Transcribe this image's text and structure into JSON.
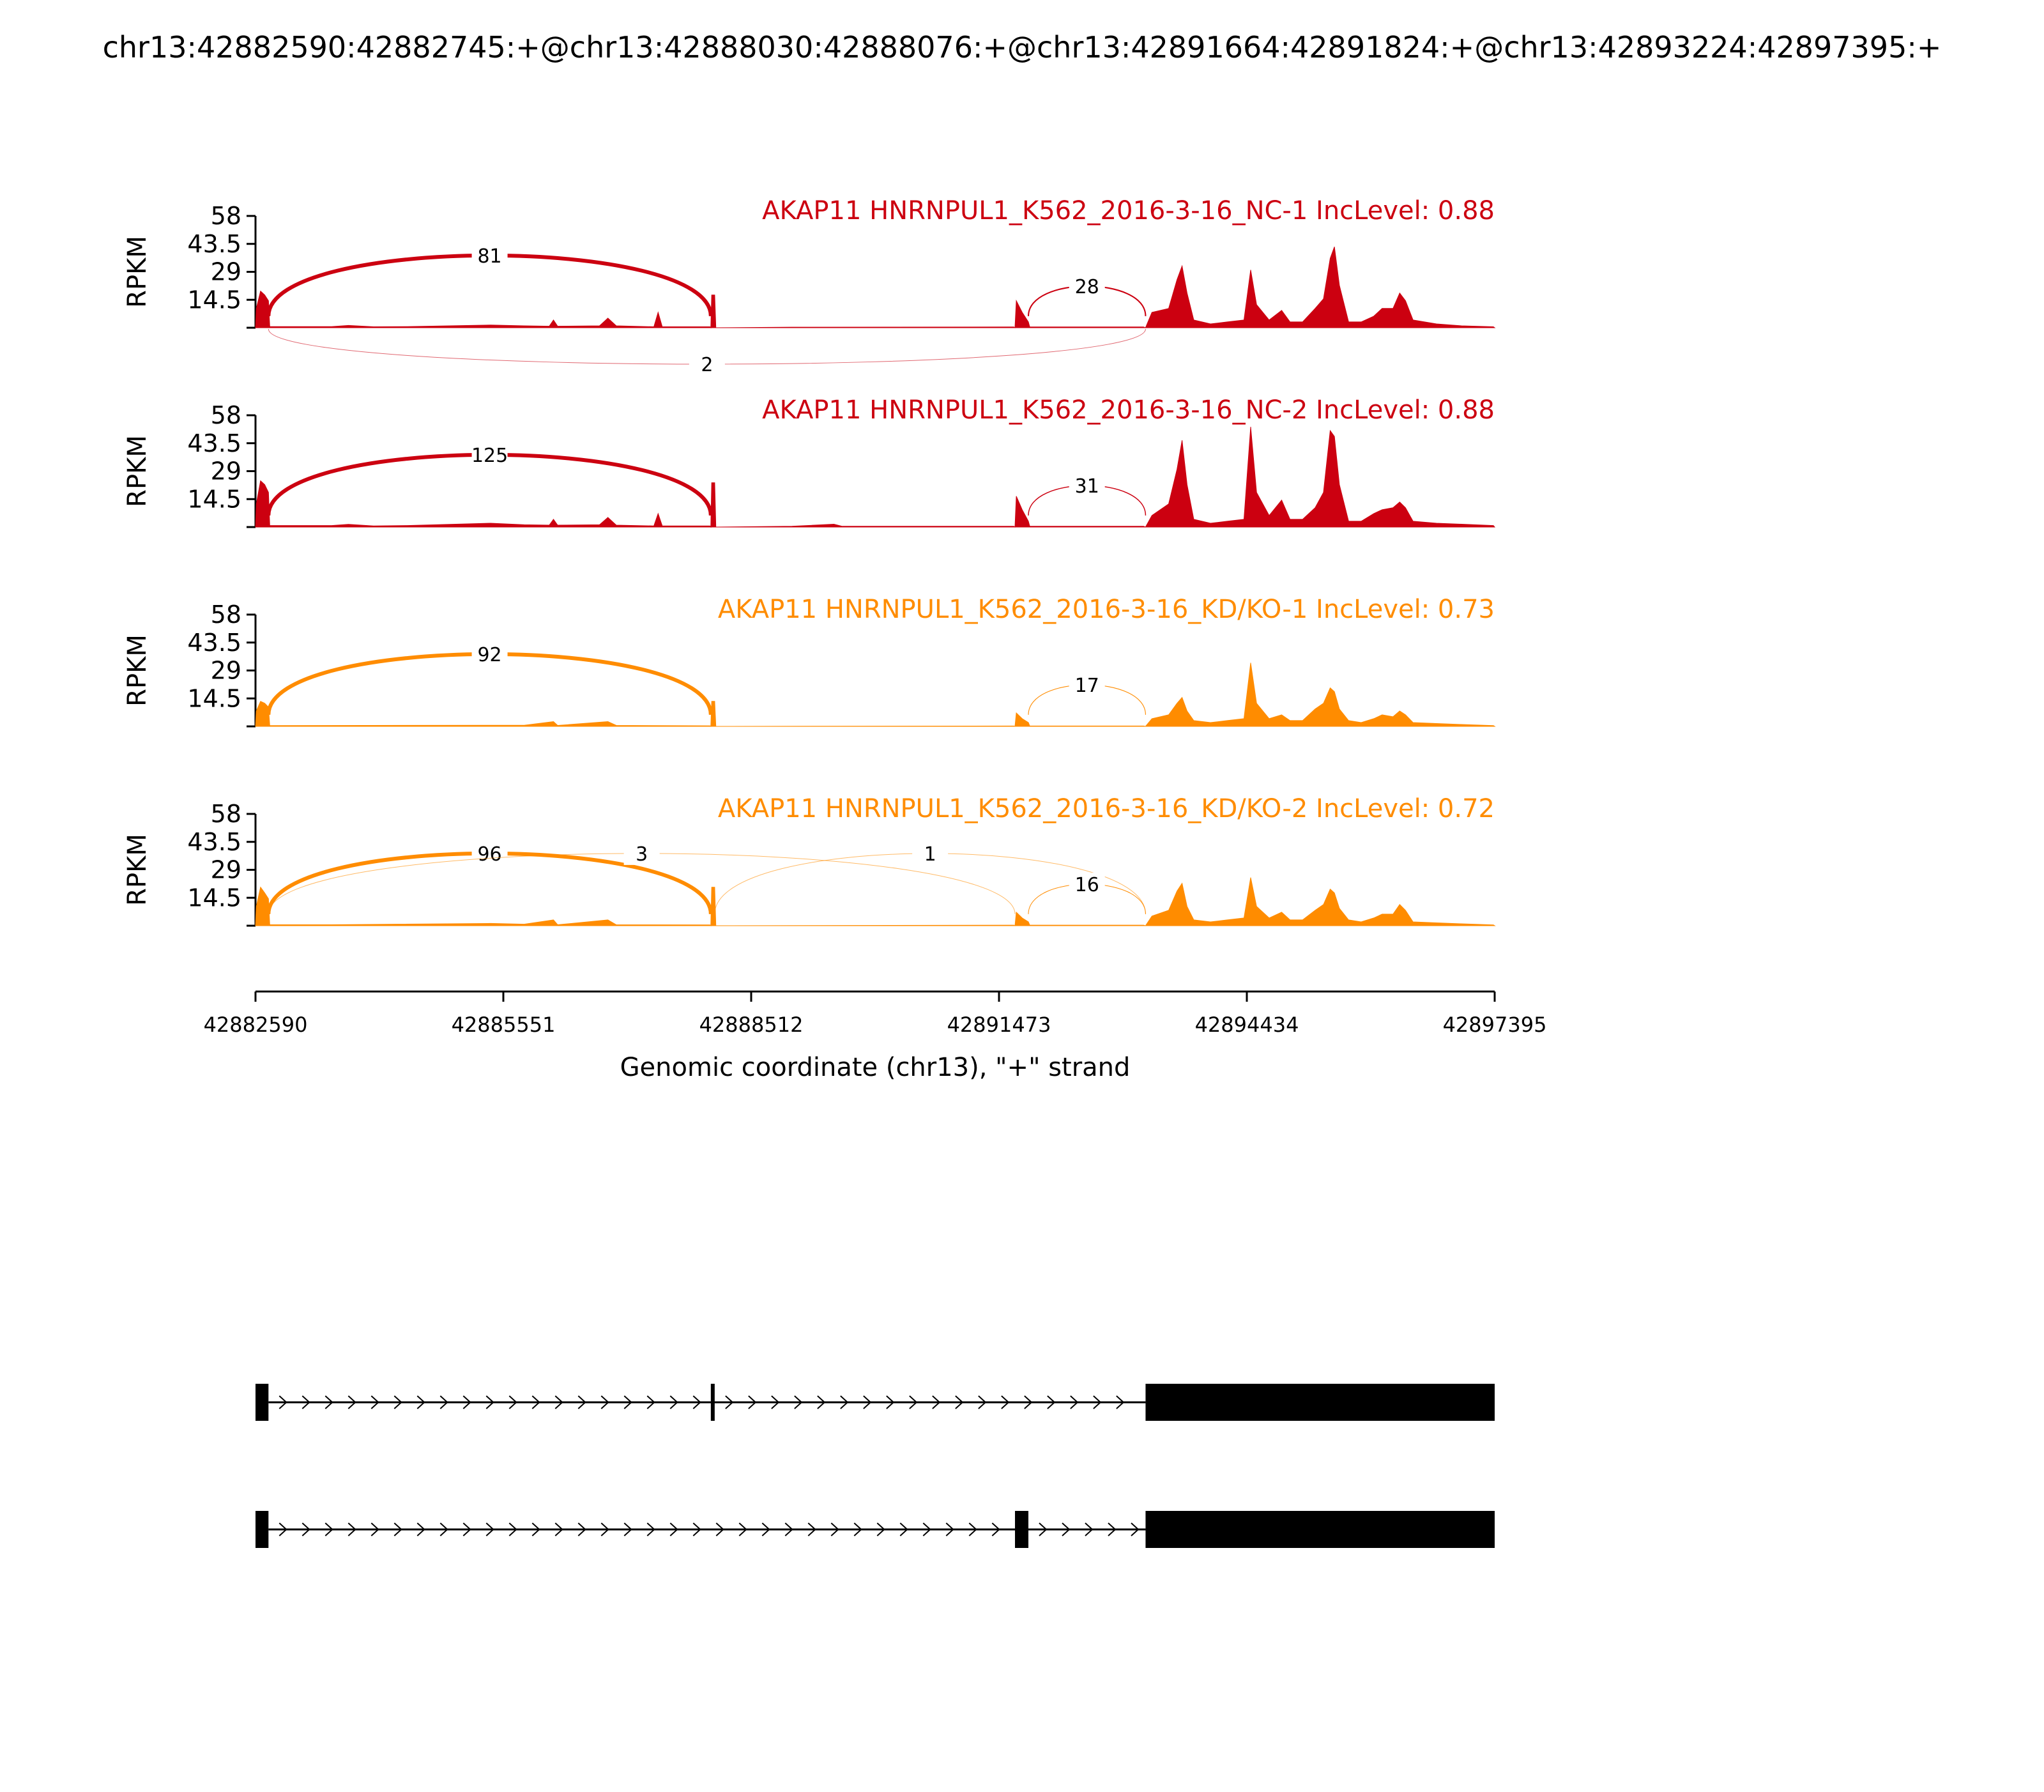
{
  "title": "chr13:42882590:42882745:+@chr13:42888030:42888076:+@chr13:42891664:42891824:+@chr13:42893224:42897395:+",
  "colors": {
    "control": "#cc0010",
    "knockdown": "#ff8c00",
    "axis": "#000000",
    "gene_model": "#000000"
  },
  "chart_data": {
    "type": "area",
    "subtype": "sashimi",
    "x_axis": {
      "label": "Genomic coordinate (chr13), \"+\" strand",
      "range": [
        42882590,
        42897395
      ],
      "ticks": [
        42882590,
        42885551,
        42888512,
        42891473,
        42894434,
        42897395
      ],
      "tick_labels": [
        "42882590",
        "42885551",
        "42888512",
        "42891473",
        "42894434",
        "42897395"
      ]
    },
    "y_axis": {
      "label": "RPKM",
      "range": [
        0,
        58
      ],
      "ticks": [
        14.5,
        29,
        43.5,
        58
      ],
      "tick_labels": [
        "14.5",
        "29",
        "43.5",
        "58"
      ]
    },
    "grid": false,
    "tracks": [
      {
        "label": "AKAP11 HNRNPUL1_K562_2016-3-16_NC-1 IncLevel: 0.88",
        "group": "control",
        "coverage": [
          [
            42882590,
            0
          ],
          [
            42882600,
            10
          ],
          [
            42882650,
            19
          ],
          [
            42882700,
            17
          ],
          [
            42882745,
            14
          ],
          [
            42882760,
            0.6
          ],
          [
            42883500,
            0.6
          ],
          [
            42883700,
            1.2
          ],
          [
            42884000,
            0.5
          ],
          [
            42884400,
            0.6
          ],
          [
            42885400,
            1.4
          ],
          [
            42885800,
            1.0
          ],
          [
            42886100,
            0.8
          ],
          [
            42886150,
            4
          ],
          [
            42886200,
            0.8
          ],
          [
            42886700,
            1.0
          ],
          [
            42886800,
            5
          ],
          [
            42886900,
            1.0
          ],
          [
            42887350,
            0.5
          ],
          [
            42887400,
            8
          ],
          [
            42887450,
            0.5
          ],
          [
            42888020,
            0.5
          ],
          [
            42888030,
            0
          ],
          [
            42888040,
            17
          ],
          [
            42888076,
            17
          ],
          [
            42888090,
            0
          ],
          [
            42889000,
            0.3
          ],
          [
            42891650,
            0.4
          ],
          [
            42891664,
            0
          ],
          [
            42891680,
            14
          ],
          [
            42891750,
            8
          ],
          [
            42891824,
            3
          ],
          [
            42891840,
            0.4
          ],
          [
            42893200,
            0.4
          ],
          [
            42893224,
            0
          ],
          [
            42893300,
            8
          ],
          [
            42893500,
            10
          ],
          [
            42893600,
            25
          ],
          [
            42893660,
            32
          ],
          [
            42893720,
            18
          ],
          [
            42893800,
            4
          ],
          [
            42894000,
            2
          ],
          [
            42894200,
            3
          ],
          [
            42894400,
            4
          ],
          [
            42894480,
            30
          ],
          [
            42894550,
            12
          ],
          [
            42894700,
            4
          ],
          [
            42894850,
            9
          ],
          [
            42894950,
            3
          ],
          [
            42895100,
            3
          ],
          [
            42895250,
            10
          ],
          [
            42895350,
            15
          ],
          [
            42895430,
            36
          ],
          [
            42895480,
            42
          ],
          [
            42895540,
            22
          ],
          [
            42895650,
            3
          ],
          [
            42895800,
            3
          ],
          [
            42895950,
            6
          ],
          [
            42896050,
            10
          ],
          [
            42896180,
            10
          ],
          [
            42896260,
            18
          ],
          [
            42896330,
            14
          ],
          [
            42896420,
            4
          ],
          [
            42896700,
            2
          ],
          [
            42897000,
            1.0
          ],
          [
            42897380,
            0.5
          ],
          [
            42897395,
            0
          ]
        ],
        "junctions": [
          {
            "from": 42882745,
            "to": 42888030,
            "reads": 81,
            "side": "above"
          },
          {
            "from": 42891824,
            "to": 42893224,
            "reads": 28,
            "side": "above"
          },
          {
            "from": 42882745,
            "to": 42893224,
            "reads": 2,
            "side": "below"
          }
        ]
      },
      {
        "label": "AKAP11 HNRNPUL1_K562_2016-3-16_NC-2 IncLevel: 0.88",
        "group": "control",
        "coverage": [
          [
            42882590,
            0
          ],
          [
            42882600,
            12
          ],
          [
            42882650,
            24
          ],
          [
            42882700,
            22
          ],
          [
            42882745,
            18
          ],
          [
            42882760,
            0.8
          ],
          [
            42883500,
            0.8
          ],
          [
            42883700,
            1.4
          ],
          [
            42884000,
            0.6
          ],
          [
            42884400,
            0.8
          ],
          [
            42885400,
            2.0
          ],
          [
            42885800,
            1.2
          ],
          [
            42886100,
            1.0
          ],
          [
            42886150,
            4
          ],
          [
            42886200,
            1.0
          ],
          [
            42886700,
            1.2
          ],
          [
            42886800,
            5
          ],
          [
            42886900,
            1.0
          ],
          [
            42887350,
            0.6
          ],
          [
            42887400,
            7
          ],
          [
            42887450,
            0.6
          ],
          [
            42888020,
            0.6
          ],
          [
            42888030,
            0
          ],
          [
            42888040,
            23
          ],
          [
            42888076,
            23
          ],
          [
            42888090,
            0
          ],
          [
            42889000,
            0.4
          ],
          [
            42889500,
            1.5
          ],
          [
            42889600,
            0.4
          ],
          [
            42891650,
            0.4
          ],
          [
            42891664,
            0
          ],
          [
            42891680,
            16
          ],
          [
            42891750,
            9
          ],
          [
            42891824,
            3
          ],
          [
            42891840,
            0.4
          ],
          [
            42893200,
            0.4
          ],
          [
            42893224,
            0
          ],
          [
            42893300,
            6
          ],
          [
            42893500,
            12
          ],
          [
            42893600,
            30
          ],
          [
            42893660,
            45
          ],
          [
            42893720,
            22
          ],
          [
            42893800,
            4
          ],
          [
            42894000,
            2
          ],
          [
            42894200,
            3
          ],
          [
            42894400,
            4
          ],
          [
            42894480,
            52
          ],
          [
            42894550,
            18
          ],
          [
            42894700,
            6
          ],
          [
            42894850,
            14
          ],
          [
            42894950,
            4
          ],
          [
            42895100,
            4
          ],
          [
            42895250,
            10
          ],
          [
            42895350,
            18
          ],
          [
            42895430,
            50
          ],
          [
            42895480,
            47
          ],
          [
            42895540,
            22
          ],
          [
            42895650,
            3
          ],
          [
            42895800,
            3
          ],
          [
            42895950,
            7
          ],
          [
            42896050,
            9
          ],
          [
            42896180,
            10
          ],
          [
            42896260,
            13
          ],
          [
            42896330,
            10
          ],
          [
            42896420,
            3
          ],
          [
            42896700,
            2
          ],
          [
            42897000,
            1.5
          ],
          [
            42897380,
            0.8
          ],
          [
            42897395,
            0
          ]
        ],
        "junctions": [
          {
            "from": 42882745,
            "to": 42888030,
            "reads": 125,
            "side": "above"
          },
          {
            "from": 42891824,
            "to": 42893224,
            "reads": 31,
            "side": "above"
          }
        ]
      },
      {
        "label": "AKAP11 HNRNPUL1_K562_2016-3-16_KD/KO-1 IncLevel: 0.73",
        "group": "knockdown",
        "coverage": [
          [
            42882590,
            0
          ],
          [
            42882600,
            8
          ],
          [
            42882650,
            13
          ],
          [
            42882700,
            12
          ],
          [
            42882745,
            10
          ],
          [
            42882760,
            0.4
          ],
          [
            42885400,
            0.6
          ],
          [
            42885800,
            0.6
          ],
          [
            42886150,
            2.5
          ],
          [
            42886200,
            0.5
          ],
          [
            42886800,
            2.5
          ],
          [
            42886900,
            0.5
          ],
          [
            42888020,
            0.3
          ],
          [
            42888030,
            0
          ],
          [
            42888040,
            13
          ],
          [
            42888076,
            13
          ],
          [
            42888090,
            0
          ],
          [
            42891650,
            0.2
          ],
          [
            42891664,
            0
          ],
          [
            42891680,
            7
          ],
          [
            42891750,
            4
          ],
          [
            42891824,
            2
          ],
          [
            42891840,
            0.2
          ],
          [
            42893200,
            0.2
          ],
          [
            42893224,
            0
          ],
          [
            42893300,
            4
          ],
          [
            42893500,
            6
          ],
          [
            42893600,
            12
          ],
          [
            42893660,
            15
          ],
          [
            42893720,
            8
          ],
          [
            42893800,
            3
          ],
          [
            42894000,
            2
          ],
          [
            42894200,
            3
          ],
          [
            42894400,
            4
          ],
          [
            42894480,
            33
          ],
          [
            42894550,
            12
          ],
          [
            42894700,
            4
          ],
          [
            42894850,
            6
          ],
          [
            42894950,
            3
          ],
          [
            42895100,
            3
          ],
          [
            42895250,
            9
          ],
          [
            42895350,
            12
          ],
          [
            42895430,
            20
          ],
          [
            42895480,
            18
          ],
          [
            42895540,
            9
          ],
          [
            42895650,
            3
          ],
          [
            42895800,
            2
          ],
          [
            42895950,
            4
          ],
          [
            42896050,
            6
          ],
          [
            42896180,
            5
          ],
          [
            42896260,
            8
          ],
          [
            42896330,
            6
          ],
          [
            42896420,
            2
          ],
          [
            42896700,
            1.5
          ],
          [
            42897000,
            1.0
          ],
          [
            42897380,
            0.4
          ],
          [
            42897395,
            0
          ]
        ],
        "junctions": [
          {
            "from": 42882745,
            "to": 42888030,
            "reads": 92,
            "side": "above"
          },
          {
            "from": 42891824,
            "to": 42893224,
            "reads": 17,
            "side": "above"
          }
        ]
      },
      {
        "label": "AKAP11 HNRNPUL1_K562_2016-3-16_KD/KO-2 IncLevel: 0.72",
        "group": "knockdown",
        "coverage": [
          [
            42882590,
            0
          ],
          [
            42882600,
            10
          ],
          [
            42882650,
            20
          ],
          [
            42882700,
            17
          ],
          [
            42882745,
            14
          ],
          [
            42882760,
            0.5
          ],
          [
            42883500,
            0.5
          ],
          [
            42885400,
            1.2
          ],
          [
            42885800,
            0.8
          ],
          [
            42886150,
            3
          ],
          [
            42886200,
            0.5
          ],
          [
            42886800,
            3
          ],
          [
            42886900,
            0.5
          ],
          [
            42888020,
            0.4
          ],
          [
            42888030,
            0
          ],
          [
            42888040,
            20
          ],
          [
            42888076,
            20
          ],
          [
            42888090,
            0
          ],
          [
            42891650,
            0.3
          ],
          [
            42891664,
            0
          ],
          [
            42891680,
            7
          ],
          [
            42891750,
            4
          ],
          [
            42891824,
            2
          ],
          [
            42891840,
            0.3
          ],
          [
            42893200,
            0.3
          ],
          [
            42893224,
            0
          ],
          [
            42893300,
            5
          ],
          [
            42893500,
            8
          ],
          [
            42893600,
            18
          ],
          [
            42893660,
            22
          ],
          [
            42893720,
            10
          ],
          [
            42893800,
            3
          ],
          [
            42894000,
            2
          ],
          [
            42894200,
            3
          ],
          [
            42894400,
            4
          ],
          [
            42894480,
            25
          ],
          [
            42894550,
            10
          ],
          [
            42894700,
            4
          ],
          [
            42894850,
            7
          ],
          [
            42894950,
            3
          ],
          [
            42895100,
            3
          ],
          [
            42895250,
            8
          ],
          [
            42895350,
            11
          ],
          [
            42895430,
            19
          ],
          [
            42895480,
            17
          ],
          [
            42895540,
            9
          ],
          [
            42895650,
            3
          ],
          [
            42895800,
            2
          ],
          [
            42895950,
            4
          ],
          [
            42896050,
            6
          ],
          [
            42896180,
            6
          ],
          [
            42896260,
            11
          ],
          [
            42896330,
            8
          ],
          [
            42896420,
            2
          ],
          [
            42896700,
            1.5
          ],
          [
            42897000,
            1.0
          ],
          [
            42897380,
            0.4
          ],
          [
            42897395,
            0
          ]
        ],
        "junctions": [
          {
            "from": 42882745,
            "to": 42888030,
            "reads": 96,
            "side": "above"
          },
          {
            "from": 42882745,
            "to": 42891664,
            "reads": 3,
            "side": "above"
          },
          {
            "from": 42888076,
            "to": 42893224,
            "reads": 1,
            "side": "above"
          },
          {
            "from": 42891824,
            "to": 42893224,
            "reads": 16,
            "side": "above"
          }
        ]
      }
    ],
    "isoforms": [
      {
        "exons": [
          [
            42882590,
            42882745
          ],
          [
            42888030,
            42888076
          ],
          [
            42893224,
            42897395
          ]
        ]
      },
      {
        "exons": [
          [
            42882590,
            42882745
          ],
          [
            42891664,
            42891824
          ],
          [
            42893224,
            42897395
          ]
        ]
      }
    ]
  }
}
